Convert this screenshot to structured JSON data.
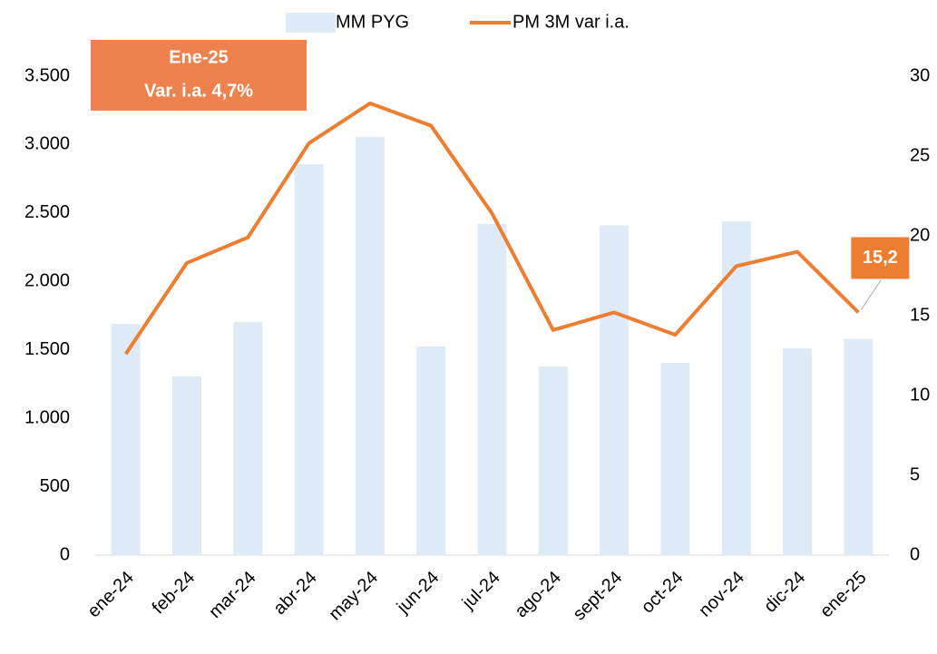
{
  "chart_data": {
    "type": "bar_line",
    "categories": [
      "ene-24",
      "feb-24",
      "mar-24",
      "abr-24",
      "may-24",
      "jun-24",
      "jul-24",
      "ago-24",
      "sept-24",
      "oct-24",
      "nov-24",
      "dic-24",
      "ene-25"
    ],
    "series": [
      {
        "name": "MM PYG",
        "type": "bar",
        "color": "#deebf7",
        "axis": "y",
        "values": [
          1690,
          1306,
          1704,
          2857,
          3056,
          1525,
          2420,
          1379,
          2410,
          1405,
          2440,
          1511,
          1580
        ]
      },
      {
        "name": "PM 3M var i.a.",
        "type": "line",
        "color": "#ed7d31",
        "axis": "y2",
        "values": [
          12.6,
          18.3,
          19.9,
          25.8,
          28.3,
          26.9,
          21.4,
          14.1,
          15.2,
          13.8,
          18.1,
          19.0,
          15.2
        ],
        "value_labels": [
          null,
          null,
          null,
          null,
          null,
          null,
          null,
          null,
          null,
          null,
          null,
          null,
          "15,2"
        ]
      }
    ],
    "ylim": [
      0,
      3500
    ],
    "yticks": [
      0,
      500,
      {
        "value": 1000,
        "label": "1.000"
      },
      {
        "value": 1500,
        "label": "1.500"
      },
      {
        "value": 2000,
        "label": "2.000"
      },
      {
        "value": 2500,
        "label": "2.500"
      },
      {
        "value": 3000,
        "label": "3.000"
      },
      {
        "value": 3500,
        "label": "3.500"
      }
    ],
    "y2lim": [
      0,
      30
    ],
    "y2ticks": [
      0,
      5,
      10,
      15,
      20,
      25,
      30
    ],
    "annotation": [
      "Ene-25",
      "Var. i.a. 4,7%"
    ],
    "legend": "top"
  }
}
